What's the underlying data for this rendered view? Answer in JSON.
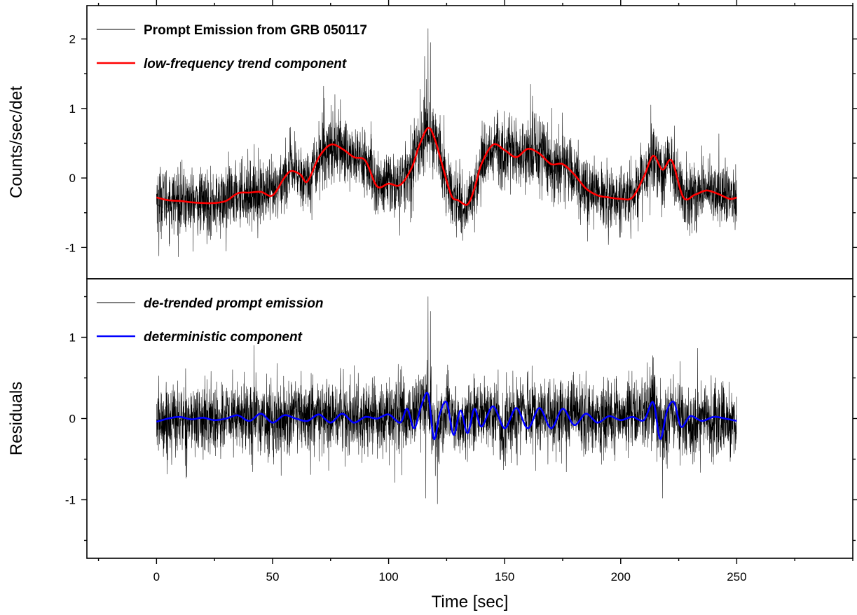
{
  "chart_data": [
    {
      "type": "line",
      "ylabel": "Counts/sec/det",
      "xlim": [
        -30,
        300
      ],
      "ylim": [
        -1.45,
        2.48
      ],
      "xticks": [
        0,
        50,
        100,
        150,
        200,
        250
      ],
      "yticks": [
        -1,
        0,
        1,
        2
      ],
      "yticklabels": [
        "-1",
        "0",
        "1",
        "2"
      ],
      "legend_position": "top-left",
      "series": [
        {
          "name": "Prompt Emission from GRB 050117",
          "color": "#000000",
          "style": "noisy",
          "noise_sigma": 0.23,
          "extremes": [
            {
              "x": 117,
              "y": 2.15
            },
            {
              "x": 118,
              "y": 1.95
            },
            {
              "x": 115.5,
              "y": 1.75
            },
            {
              "x": 1,
              "y": -1.12
            },
            {
              "x": 30,
              "y": -1.05
            },
            {
              "x": 132,
              "y": -0.9
            },
            {
              "x": 72,
              "y": 1.32
            },
            {
              "x": 162,
              "y": 1.18
            },
            {
              "x": 213,
              "y": 1.05
            }
          ],
          "x": [
            0,
            5,
            10,
            15,
            20,
            25,
            30,
            35,
            40,
            45,
            50,
            55,
            58,
            62,
            65,
            70,
            75,
            80,
            85,
            90,
            95,
            100,
            105,
            110,
            113,
            117,
            120,
            123,
            127,
            130,
            134,
            137,
            140,
            145,
            150,
            155,
            160,
            165,
            170,
            175,
            180,
            185,
            190,
            195,
            200,
            205,
            210,
            214,
            218,
            222,
            227,
            232,
            237,
            242,
            247,
            250
          ],
          "values": [
            -0.28,
            -0.32,
            -0.33,
            -0.35,
            -0.36,
            -0.36,
            -0.33,
            -0.22,
            -0.21,
            -0.2,
            -0.25,
            0.0,
            0.1,
            0.05,
            -0.05,
            0.3,
            0.48,
            0.42,
            0.3,
            0.25,
            -0.12,
            -0.08,
            -0.1,
            0.15,
            0.45,
            0.72,
            0.55,
            0.2,
            -0.25,
            -0.32,
            -0.38,
            -0.15,
            0.2,
            0.48,
            0.4,
            0.3,
            0.42,
            0.35,
            0.2,
            0.2,
            0.05,
            -0.15,
            -0.25,
            -0.28,
            -0.3,
            -0.28,
            0.02,
            0.32,
            0.12,
            0.25,
            -0.28,
            -0.24,
            -0.18,
            -0.23,
            -0.3,
            -0.28
          ]
        },
        {
          "name": "low-frequency trend component",
          "color": "#ff0000",
          "style": "smooth",
          "x": [
            0,
            5,
            10,
            15,
            20,
            25,
            30,
            35,
            40,
            45,
            50,
            55,
            58,
            62,
            65,
            70,
            75,
            80,
            85,
            90,
            95,
            100,
            105,
            110,
            113,
            117,
            120,
            123,
            127,
            130,
            134,
            137,
            140,
            145,
            150,
            155,
            160,
            165,
            170,
            175,
            180,
            185,
            190,
            195,
            200,
            205,
            210,
            214,
            218,
            222,
            227,
            232,
            237,
            242,
            247,
            250
          ],
          "values": [
            -0.28,
            -0.32,
            -0.33,
            -0.35,
            -0.36,
            -0.36,
            -0.33,
            -0.22,
            -0.21,
            -0.2,
            -0.25,
            0.0,
            0.1,
            0.05,
            -0.05,
            0.3,
            0.48,
            0.42,
            0.3,
            0.25,
            -0.12,
            -0.08,
            -0.1,
            0.15,
            0.45,
            0.72,
            0.55,
            0.2,
            -0.25,
            -0.32,
            -0.38,
            -0.15,
            0.2,
            0.48,
            0.4,
            0.3,
            0.42,
            0.35,
            0.2,
            0.2,
            0.05,
            -0.15,
            -0.25,
            -0.28,
            -0.3,
            -0.28,
            0.02,
            0.32,
            0.12,
            0.25,
            -0.28,
            -0.24,
            -0.18,
            -0.23,
            -0.3,
            -0.28
          ]
        }
      ]
    },
    {
      "type": "line",
      "xlabel": "Time [sec]",
      "ylabel": "Residuals",
      "xlim": [
        -30,
        300
      ],
      "ylim": [
        -1.72,
        1.72
      ],
      "xticks": [
        0,
        50,
        100,
        150,
        200,
        250
      ],
      "xticklabels": [
        "0",
        "50",
        "100",
        "150",
        "200",
        "250"
      ],
      "yticks": [
        -1,
        0,
        1
      ],
      "yticklabels": [
        "-1",
        "0",
        "1"
      ],
      "legend_position": "top-left",
      "series": [
        {
          "name": "de-trended prompt emission",
          "color": "#000000",
          "style": "noisy",
          "noise_sigma": 0.22,
          "extremes": [
            {
              "x": 117,
              "y": 1.5
            },
            {
              "x": 118,
              "y": 1.32
            },
            {
              "x": 121,
              "y": -1.05
            },
            {
              "x": 116,
              "y": -0.98
            },
            {
              "x": 214,
              "y": 0.75
            },
            {
              "x": 218,
              "y": -0.98
            },
            {
              "x": 42,
              "y": 0.9
            }
          ],
          "x": [
            0,
            10,
            20,
            30,
            40,
            50,
            60,
            70,
            80,
            90,
            100,
            110,
            117,
            121,
            125,
            130,
            140,
            150,
            160,
            170,
            180,
            190,
            200,
            210,
            214,
            218,
            222,
            230,
            240,
            250
          ],
          "values": [
            -0.04,
            0.0,
            -0.02,
            0.0,
            0.03,
            -0.02,
            0.02,
            0.0,
            0.02,
            0.0,
            0.02,
            0.05,
            0.2,
            -0.2,
            0.15,
            -0.1,
            0.1,
            -0.05,
            0.08,
            0.0,
            0.05,
            0.0,
            0.02,
            0.05,
            0.2,
            -0.2,
            0.12,
            -0.05,
            0.02,
            -0.03
          ]
        },
        {
          "name": "deterministic component",
          "color": "#0000ff",
          "style": "oscillating",
          "x": [
            0,
            5,
            10,
            15,
            20,
            25,
            30,
            35,
            40,
            45,
            50,
            55,
            60,
            65,
            70,
            75,
            80,
            85,
            90,
            95,
            100,
            105,
            108,
            111,
            114,
            117,
            119.5,
            122,
            125,
            128,
            131,
            134,
            137,
            140,
            145,
            150,
            155,
            160,
            165,
            170,
            175,
            180,
            185,
            190,
            195,
            200,
            205,
            210,
            214,
            217,
            220,
            223,
            226,
            230,
            235,
            240,
            245,
            250
          ],
          "values": [
            -0.04,
            0.0,
            0.02,
            -0.01,
            0.01,
            -0.02,
            0.0,
            0.04,
            -0.03,
            0.06,
            -0.05,
            0.04,
            0.0,
            -0.03,
            0.05,
            -0.05,
            0.06,
            -0.05,
            0.02,
            0.0,
            0.05,
            -0.05,
            0.12,
            -0.12,
            0.15,
            0.3,
            -0.25,
            0.05,
            0.2,
            -0.2,
            0.1,
            -0.18,
            0.12,
            -0.1,
            0.15,
            -0.12,
            0.13,
            -0.12,
            0.13,
            -0.12,
            0.12,
            -0.08,
            0.06,
            -0.05,
            0.03,
            -0.02,
            0.02,
            -0.02,
            0.2,
            -0.25,
            0.1,
            0.2,
            -0.1,
            0.03,
            -0.03,
            0.02,
            0.0,
            -0.03
          ]
        }
      ]
    }
  ]
}
